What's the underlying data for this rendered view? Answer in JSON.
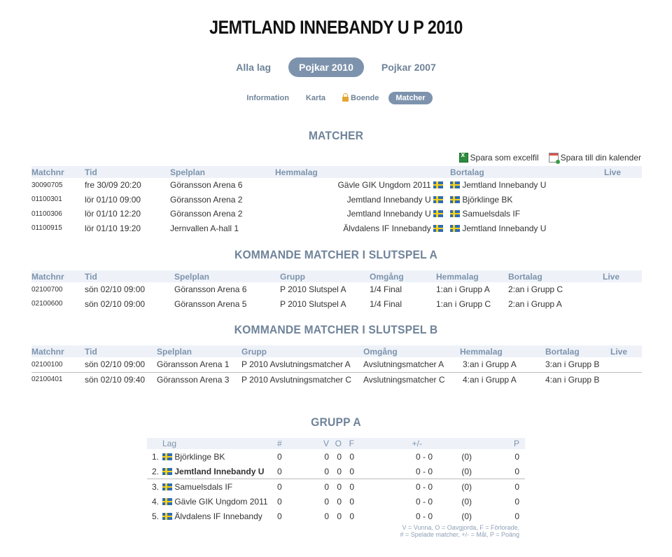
{
  "title": "JEMTLAND INNEBANDY U P 2010",
  "team_tabs": [
    "Alla lag",
    "Pojkar 2010",
    "Pojkar 2007"
  ],
  "sub_tabs": [
    "Information",
    "Karta",
    "Boende",
    "Matcher"
  ],
  "sections": {
    "matcher": "MATCHER",
    "slutspel_a": "KOMMANDE MATCHER I SLUTSPEL A",
    "slutspel_b": "KOMMANDE MATCHER I SLUTSPEL B",
    "grupp_a": "GRUPP A"
  },
  "exports": {
    "excel": "Spara som excelfil",
    "calendar": "Spara till din kalender"
  },
  "matches": {
    "headers": [
      "Matchnr",
      "Tid",
      "Spelplan",
      "Hemmalag",
      "Bortalag",
      "Live"
    ],
    "rows": [
      [
        "30090705",
        "fre 30/09 20:20",
        "Göransson Arena 6",
        "Gävle GIK Ungdom 2011",
        "Jemtland Innebandy U"
      ],
      [
        "01100301",
        "lör 01/10 09:00",
        "Göransson Arena 2",
        "Jemtland Innebandy U",
        "Björklinge BK"
      ],
      [
        "01100306",
        "lör 01/10 12:20",
        "Göransson Arena 2",
        "Jemtland Innebandy U",
        "Samuelsdals IF"
      ],
      [
        "01100915",
        "lör 01/10 19:20",
        "Jernvallen A-hall 1",
        "Älvdalens IF Innebandy",
        "Jemtland Innebandy U"
      ]
    ]
  },
  "playoff_a": {
    "headers": [
      "Matchnr",
      "Tid",
      "Spelplan",
      "Grupp",
      "Omgång",
      "Hemmalag",
      "Bortalag",
      "Live"
    ],
    "rows": [
      [
        "02100700",
        "sön 02/10 09:00",
        "Göransson Arena 6",
        "P 2010 Slutspel A",
        "1/4 Final",
        "1:an i Grupp A",
        "2:an i Grupp C"
      ],
      [
        "02100600",
        "sön 02/10 09:00",
        "Göransson Arena 5",
        "P 2010 Slutspel A",
        "1/4 Final",
        "1:an i Grupp C",
        "2:an i Grupp A"
      ]
    ]
  },
  "playoff_b": {
    "headers": [
      "Matchnr",
      "Tid",
      "Spelplan",
      "Grupp",
      "Omgång",
      "Hemmalag",
      "Bortalag",
      "Live"
    ],
    "rows": [
      [
        "02100100",
        "sön 02/10 09:00",
        "Göransson Arena 1",
        "P 2010 Avslutningsmatcher A",
        "Avslutningsmatcher A",
        "3:an i Grupp A",
        "3:an i Grupp B"
      ],
      [
        "02100401",
        "sön 02/10 09:40",
        "Göransson Arena 3",
        "P 2010 Avslutningsmatcher C",
        "Avslutningsmatcher C",
        "4:an i Grupp A",
        "4:an i Grupp B"
      ]
    ]
  },
  "standings": {
    "headers": [
      "Lag",
      "#",
      "V",
      "O",
      "F",
      "+/-",
      "P"
    ],
    "rows": [
      [
        "1.",
        "Björklinge BK",
        "0",
        "0",
        "0",
        "0",
        "0 - 0",
        "(0)",
        "0"
      ],
      [
        "2.",
        "Jemtland Innebandy U",
        "0",
        "0",
        "0",
        "0",
        "0 - 0",
        "(0)",
        "0"
      ],
      [
        "3.",
        "Samuelsdals IF",
        "0",
        "0",
        "0",
        "0",
        "0 - 0",
        "(0)",
        "0"
      ],
      [
        "4.",
        "Gävle GIK Ungdom 2011",
        "0",
        "0",
        "0",
        "0",
        "0 - 0",
        "(0)",
        "0"
      ],
      [
        "5.",
        "Älvdalens IF Innebandy",
        "0",
        "0",
        "0",
        "0",
        "0 - 0",
        "(0)",
        "0"
      ]
    ],
    "legend_line1": "V = Vunna, O = Oavgjorda, F = Förlorade,",
    "legend_line2": "# = Spelade matcher, +/- = Mål, P = Poäng"
  },
  "colors": {
    "accent": "#7d93ad",
    "header_bg": "#eef2f8",
    "flag_blue": "#2f6cb3",
    "flag_yellow": "#f6d21b"
  },
  "icons": {
    "flag": "sweden-flag-icon",
    "excel": "excel-icon",
    "calendar": "calendar-icon",
    "lock": "lock-icon"
  }
}
